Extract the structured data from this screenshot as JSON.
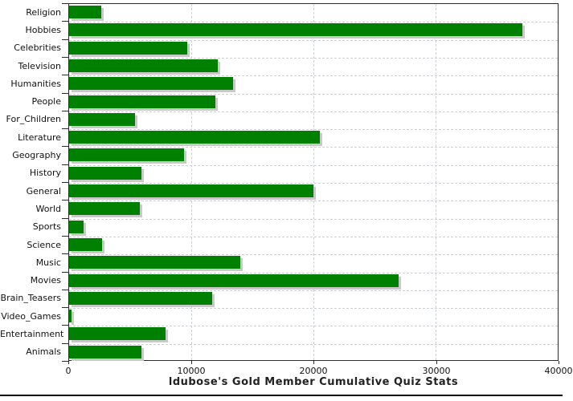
{
  "chart_data": {
    "type": "bar",
    "orientation": "horizontal",
    "title": "ldubose's Gold Member Cumulative Quiz Stats",
    "categories": [
      "Religion",
      "Hobbies",
      "Celebrities",
      "Television",
      "Humanities",
      "People",
      "For_Children",
      "Literature",
      "Geography",
      "History",
      "General",
      "World",
      "Sports",
      "Science",
      "Music",
      "Movies",
      "Brain_Teasers",
      "Video_Games",
      "Entertainment",
      "Animals"
    ],
    "values": [
      2600,
      37100,
      9700,
      12200,
      13400,
      12000,
      5400,
      20500,
      9400,
      5900,
      20000,
      5800,
      1200,
      2700,
      14000,
      27000,
      11700,
      200,
      7900,
      5900
    ],
    "xlabel": "",
    "ylabel": "",
    "xlim": [
      0,
      40000
    ],
    "x_ticks": [
      0,
      10000,
      20000,
      30000,
      40000
    ],
    "x_tick_labels": [
      "0",
      "10000",
      "20000",
      "30000",
      "40000"
    ],
    "grid": "dashed",
    "legend": "none",
    "colors": {
      "bar": "#008000",
      "bar_shadow": "#c9c9c9",
      "gridline": "#cdd0d4",
      "axis": "#2b2b2b",
      "text": "#111111"
    }
  }
}
